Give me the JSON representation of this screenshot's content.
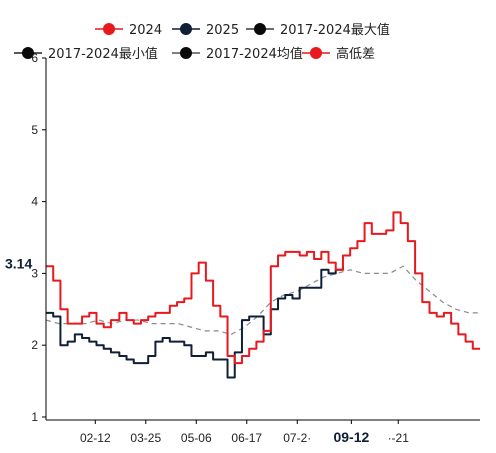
{
  "chart_data": {
    "type": "line",
    "x_ticks": [
      "02-12",
      "03-25",
      "05-06",
      "06-17",
      "07-29",
      "09-12",
      "10-21"
    ],
    "x_tick_display": [
      "02-12",
      "03-25",
      "05-06",
      "06-17",
      "07-2·",
      "09-12",
      "·-21"
    ],
    "highlight_x": "09-12",
    "highlight_value": "3.14",
    "ylim": [
      1,
      6
    ],
    "y_ticks": [
      "1",
      "2",
      "3",
      "4",
      "5",
      "6"
    ],
    "grid": false,
    "legend_position": "top",
    "colors": {
      "s2024": "#e8191e",
      "s2025": "#0f1f35",
      "max": "#3a3a3a",
      "min": "#222222",
      "avg": "#8a8a8a",
      "spread": "#e8191e"
    },
    "legend": [
      {
        "label": "2024",
        "color": "#e8191e",
        "marker": "#e8191e"
      },
      {
        "label": "2025",
        "color": "#0f1f35",
        "marker": "#0f1f35"
      },
      {
        "label": "2017-2024最大值",
        "color": "#3a3a3a",
        "marker": "#0a0a0a"
      },
      {
        "label": "2017-2024最小值",
        "color": "#222222",
        "marker": "#0a0a0a"
      },
      {
        "label": "2017-2024均值",
        "color": "#555555",
        "marker": "#0a0a0a"
      },
      {
        "label": "高低差",
        "color": "#e8191e",
        "marker": "#e8191e"
      }
    ],
    "series": [
      {
        "name": "2024",
        "x": [
          "01-02",
          "01-08",
          "01-14",
          "01-20",
          "01-26",
          "02-01",
          "02-07",
          "02-13",
          "02-19",
          "02-25",
          "03-03",
          "03-09",
          "03-15",
          "03-21",
          "03-27",
          "04-02",
          "04-08",
          "04-14",
          "04-20",
          "04-26",
          "05-02",
          "05-08",
          "05-14",
          "05-20",
          "05-26",
          "06-01",
          "06-07",
          "06-13",
          "06-19",
          "06-25",
          "07-01",
          "07-07",
          "07-13",
          "07-19",
          "07-25",
          "07-31",
          "08-06",
          "08-12",
          "08-18",
          "08-24",
          "08-30",
          "09-05",
          "09-11",
          "09-17",
          "09-23",
          "09-29",
          "10-05",
          "10-11",
          "10-17",
          "10-23",
          "10-29",
          "11-04",
          "11-10",
          "11-16",
          "11-22",
          "11-28",
          "12-04",
          "12-10",
          "12-16",
          "12-22",
          "12-28"
        ],
        "y": [
          3.1,
          2.9,
          2.5,
          2.3,
          2.3,
          2.4,
          2.45,
          2.3,
          2.25,
          2.35,
          2.45,
          2.35,
          2.3,
          2.35,
          2.4,
          2.45,
          2.45,
          2.55,
          2.6,
          2.65,
          3.0,
          3.15,
          2.9,
          2.55,
          2.4,
          1.85,
          1.75,
          1.85,
          1.95,
          2.05,
          2.2,
          3.1,
          3.25,
          3.3,
          3.3,
          3.25,
          3.3,
          3.2,
          3.3,
          3.15,
          3.05,
          3.25,
          3.35,
          3.45,
          3.7,
          3.55,
          3.55,
          3.6,
          3.85,
          3.7,
          3.45,
          3.0,
          2.6,
          2.45,
          2.4,
          2.45,
          2.3,
          2.15,
          2.05,
          1.95,
          1.95
        ]
      },
      {
        "name": "2025",
        "x": [
          "01-02",
          "01-08",
          "01-14",
          "01-20",
          "01-26",
          "02-01",
          "02-07",
          "02-13",
          "02-19",
          "02-25",
          "03-03",
          "03-09",
          "03-15",
          "03-21",
          "03-27",
          "04-02",
          "04-08",
          "04-14",
          "04-20",
          "04-26",
          "05-02",
          "05-08",
          "05-14",
          "05-20",
          "05-26",
          "06-01",
          "06-07",
          "06-13",
          "06-19",
          "06-25",
          "07-01",
          "07-07",
          "07-13",
          "07-19",
          "07-25",
          "07-31",
          "08-06",
          "08-12",
          "08-18",
          "08-24",
          "08-30",
          "09-05"
        ],
        "y": [
          2.45,
          2.4,
          2.0,
          2.05,
          2.15,
          2.1,
          2.05,
          2.0,
          1.95,
          1.9,
          1.85,
          1.8,
          1.75,
          1.75,
          1.85,
          2.05,
          2.1,
          2.05,
          2.05,
          2.0,
          1.85,
          1.85,
          1.9,
          1.8,
          1.8,
          1.55,
          1.9,
          2.35,
          2.4,
          2.4,
          2.15,
          2.5,
          2.65,
          2.7,
          2.65,
          2.8,
          2.8,
          2.8,
          3.05,
          3.0,
          3.05,
          3.1
        ]
      },
      {
        "name": "2017-2024均值",
        "x": [
          "01-02",
          "01-13",
          "01-24",
          "02-04",
          "02-15",
          "02-26",
          "03-08",
          "03-19",
          "03-30",
          "04-10",
          "04-21",
          "05-02",
          "05-13",
          "05-24",
          "06-04",
          "06-15",
          "06-26",
          "07-07",
          "07-18",
          "07-29",
          "08-09",
          "08-20",
          "08-31",
          "09-11",
          "09-22",
          "10-03",
          "10-14",
          "10-25",
          "11-05",
          "11-16",
          "11-27",
          "12-08",
          "12-19",
          "12-28"
        ],
        "y": [
          2.35,
          2.3,
          2.3,
          2.3,
          2.35,
          2.3,
          2.35,
          2.35,
          2.3,
          2.3,
          2.3,
          2.25,
          2.2,
          2.2,
          2.15,
          2.25,
          2.4,
          2.6,
          2.7,
          2.75,
          2.85,
          2.95,
          3.0,
          3.05,
          3.0,
          3.0,
          3.0,
          3.1,
          2.9,
          2.75,
          2.6,
          2.5,
          2.45,
          2.45
        ]
      }
    ]
  }
}
